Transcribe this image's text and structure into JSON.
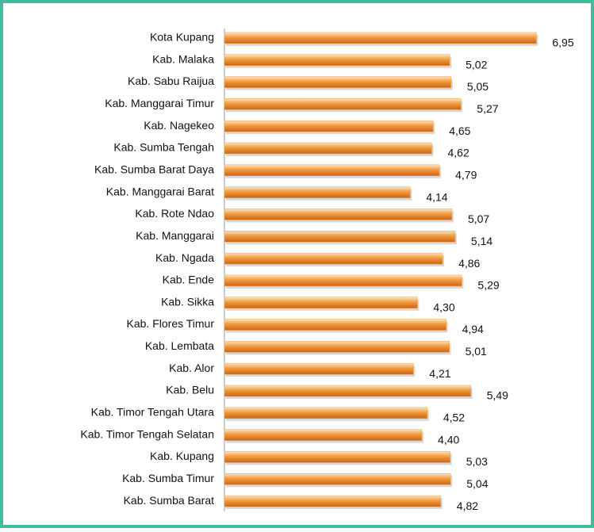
{
  "chart_data": {
    "type": "bar",
    "orientation": "horizontal",
    "categories": [
      "Kota Kupang",
      "Kab. Malaka",
      "Kab. Sabu Raijua",
      "Kab. Manggarai Timur",
      "Kab. Nagekeo",
      "Kab. Sumba Tengah",
      "Kab. Sumba Barat Daya",
      "Kab. Manggarai Barat",
      "Kab. Rote Ndao",
      "Kab. Manggarai",
      "Kab. Ngada",
      "Kab. Ende",
      "Kab. Sikka",
      "Kab. Flores Timur",
      "Kab. Lembata",
      "Kab. Alor",
      "Kab. Belu",
      "Kab. Timor Tengah Utara",
      "Kab. Timor Tengah Selatan",
      "Kab. Kupang",
      "Kab. Sumba Timur",
      "Kab. Sumba Barat"
    ],
    "values": [
      6.95,
      5.02,
      5.05,
      5.27,
      4.65,
      4.62,
      4.79,
      4.14,
      5.07,
      5.14,
      4.86,
      5.29,
      4.3,
      4.94,
      5.01,
      4.21,
      5.49,
      4.52,
      4.4,
      5.03,
      5.04,
      4.82
    ],
    "value_labels": [
      "6,95",
      "5,02",
      "5,05",
      "5,27",
      "4,65",
      "4,62",
      "4,79",
      "4,14",
      "5,07",
      "5,14",
      "4,86",
      "5,29",
      "4,30",
      "4,94",
      "5,01",
      "4,21",
      "5,49",
      "4,52",
      "4,40",
      "5,03",
      "5,04",
      "4,82"
    ],
    "color": "#f0a04b",
    "xlim": [
      0,
      8
    ]
  }
}
